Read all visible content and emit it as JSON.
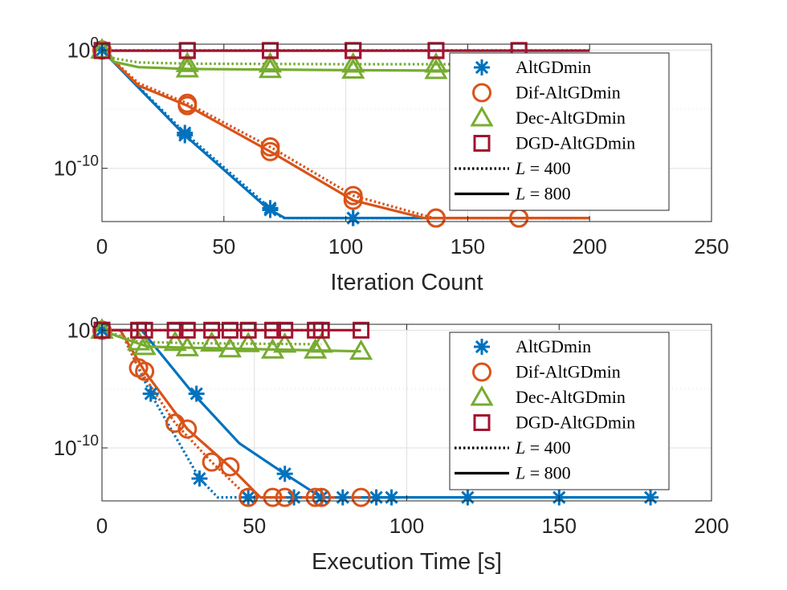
{
  "colors": {
    "AltGDmin": "#0072BD",
    "Dif-AltGDmin": "#D95319",
    "Dec-AltGDmin": "#77AC30",
    "DGD-AltGDmin": "#A2142F",
    "axis": "#262626",
    "legend_line": "#000000"
  },
  "chart_data": [
    {
      "id": "top",
      "type": "line",
      "xlabel": "Iteration Count",
      "ylabel": "",
      "xscale": "linear",
      "yscale": "log",
      "xlim": [
        0,
        250
      ],
      "ylim_exp": [
        -14.5,
        0.5
      ],
      "xticks": [
        0,
        50,
        100,
        150,
        200,
        250
      ],
      "yticks": [
        {
          "base": "10",
          "exp": "0",
          "value": 0
        },
        {
          "base": "10",
          "exp": "-10",
          "value": -10
        }
      ],
      "grid": true,
      "legend_position": "top-right",
      "legend": [
        "AltGDmin",
        "Dif-AltGDmin",
        "Dec-AltGDmin",
        "DGD-AltGDmin",
        "L = 400",
        "L = 800"
      ],
      "legend_styles": {
        "L = 400": "dotted",
        "L = 800": "solid"
      },
      "series": [
        {
          "name": "AltGDmin",
          "L": 800,
          "marker": "asterisk",
          "points": [
            [
              0,
              0
            ],
            [
              34,
              -7.2
            ],
            [
              68,
              -13.4
            ],
            [
              75,
              -14.2
            ],
            [
              200,
              -14.2
            ]
          ],
          "markers_x": [
            0,
            34,
            69,
            103
          ]
        },
        {
          "name": "AltGDmin",
          "L": 400,
          "marker": "asterisk",
          "points": [
            [
              0,
              0
            ],
            [
              34,
              -7
            ],
            [
              68,
              -13.2
            ],
            [
              74,
              -14.2
            ],
            [
              200,
              -14.2
            ]
          ],
          "markers_x": [
            0,
            34,
            69,
            103
          ]
        },
        {
          "name": "Dif-AltGDmin",
          "L": 800,
          "marker": "circle",
          "points": [
            [
              0,
              0
            ],
            [
              15,
              -3
            ],
            [
              35,
              -4.7
            ],
            [
              70,
              -8.7
            ],
            [
              103,
              -12.7
            ],
            [
              132,
              -14.2
            ],
            [
              200,
              -14.2
            ]
          ],
          "markers_x": [
            0,
            35,
            69,
            103,
            137,
            171
          ]
        },
        {
          "name": "Dif-AltGDmin",
          "L": 400,
          "marker": "circle",
          "points": [
            [
              0,
              0
            ],
            [
              15,
              -2.8
            ],
            [
              35,
              -4.5
            ],
            [
              70,
              -8.3
            ],
            [
              103,
              -12.3
            ],
            [
              136,
              -14.2
            ],
            [
              200,
              -14.2
            ]
          ],
          "markers_x": [
            0,
            35,
            69,
            103,
            137,
            171
          ]
        },
        {
          "name": "Dec-AltGDmin",
          "L": 800,
          "marker": "triangle",
          "points": [
            [
              0,
              0
            ],
            [
              5,
              -1
            ],
            [
              15,
              -1.45
            ],
            [
              35,
              -1.6
            ],
            [
              100,
              -1.7
            ],
            [
              200,
              -1.8
            ]
          ],
          "markers_x": [
            0,
            35,
            69,
            103,
            137
          ]
        },
        {
          "name": "Dec-AltGDmin",
          "L": 400,
          "marker": "triangle",
          "points": [
            [
              0,
              0
            ],
            [
              5,
              -0.7
            ],
            [
              15,
              -1.05
            ],
            [
              35,
              -1.15
            ],
            [
              100,
              -1.2
            ],
            [
              200,
              -1.2
            ]
          ],
          "markers_x": [
            0,
            35,
            69,
            103,
            137
          ]
        },
        {
          "name": "DGD-AltGDmin",
          "L": 800,
          "marker": "square",
          "points": [
            [
              0,
              -0.05
            ],
            [
              200,
              -0.05
            ]
          ],
          "markers_x": [
            0,
            35,
            69,
            103,
            137,
            171
          ]
        },
        {
          "name": "DGD-AltGDmin",
          "L": 400,
          "marker": "square",
          "points": [
            [
              0,
              -0.03
            ],
            [
              200,
              -0.03
            ]
          ],
          "markers_x": [
            0,
            35,
            69,
            103,
            137,
            171
          ]
        }
      ]
    },
    {
      "id": "bottom",
      "type": "line",
      "xlabel": "Execution Time [s]",
      "ylabel": "",
      "xscale": "linear",
      "yscale": "log",
      "xlim": [
        0,
        200
      ],
      "ylim_exp": [
        -14.5,
        0.5
      ],
      "xticks": [
        0,
        50,
        100,
        150,
        200
      ],
      "yticks": [
        {
          "base": "10",
          "exp": "0",
          "value": 0
        },
        {
          "base": "10",
          "exp": "-10",
          "value": -10
        }
      ],
      "grid": true,
      "legend_position": "top-right",
      "legend": [
        "AltGDmin",
        "Dif-AltGDmin",
        "Dec-AltGDmin",
        "DGD-AltGDmin",
        "L = 400",
        "L = 800"
      ],
      "legend_styles": {
        "L = 400": "dotted",
        "L = 800": "solid"
      },
      "series": [
        {
          "name": "AltGDmin",
          "L": 800,
          "marker": "asterisk",
          "points": [
            [
              0,
              0
            ],
            [
              6,
              0
            ],
            [
              13,
              0
            ],
            [
              30,
              -5.4
            ],
            [
              45,
              -9.6
            ],
            [
              60,
              -12.2
            ],
            [
              72,
              -14.2
            ],
            [
              180,
              -14.2
            ]
          ],
          "markers_x": [
            0,
            31,
            60,
            72,
            90,
            120,
            150,
            180
          ],
          "markers_y": [
            0,
            -5.4,
            -12.2,
            -14.2,
            -14.2,
            -14.2,
            -14.2,
            -14.2
          ]
        },
        {
          "name": "AltGDmin",
          "L": 400,
          "marker": "asterisk",
          "points": [
            [
              0,
              0
            ],
            [
              6,
              0
            ],
            [
              16,
              -5.4
            ],
            [
              32,
              -12.6
            ],
            [
              38,
              -14.2
            ],
            [
              95,
              -14.2
            ]
          ],
          "markers_x": [
            0,
            16,
            32,
            48,
            63,
            79,
            95
          ],
          "markers_y": [
            0,
            -5.4,
            -12.6,
            -14.2,
            -14.2,
            -14.2,
            -14.2
          ]
        },
        {
          "name": "Dif-AltGDmin",
          "L": 800,
          "marker": "circle",
          "points": [
            [
              0,
              0
            ],
            [
              6,
              0
            ],
            [
              14,
              -3.5
            ],
            [
              28,
              -8.4
            ],
            [
              42,
              -11.6
            ],
            [
              52,
              -14.2
            ],
            [
              85,
              -14.2
            ]
          ],
          "markers_x": [
            0,
            14,
            28,
            42,
            56,
            70,
            85
          ],
          "markers_y": [
            0,
            -3.5,
            -8.4,
            -11.6,
            -14.2,
            -14.2,
            -14.2
          ]
        },
        {
          "name": "Dif-AltGDmin",
          "L": 400,
          "marker": "circle",
          "points": [
            [
              0,
              0
            ],
            [
              6,
              0
            ],
            [
              12,
              -3.2
            ],
            [
              24,
              -7.9
            ],
            [
              36,
              -11.2
            ],
            [
              48,
              -14.2
            ],
            [
              72,
              -14.2
            ]
          ],
          "markers_x": [
            0,
            12,
            24,
            36,
            48,
            60,
            72
          ],
          "markers_y": [
            0,
            -3.2,
            -7.9,
            -11.2,
            -14.2,
            -14.2,
            -14.2
          ]
        },
        {
          "name": "Dec-AltGDmin",
          "L": 800,
          "marker": "triangle",
          "points": [
            [
              0,
              0
            ],
            [
              5,
              -0.5
            ],
            [
              15,
              -1.4
            ],
            [
              30,
              -1.5
            ],
            [
              85,
              -1.8
            ]
          ],
          "markers_x": [
            0,
            14,
            28,
            42,
            56,
            70,
            85
          ],
          "markers_y": [
            0,
            -1.4,
            -1.5,
            -1.6,
            -1.7,
            -1.7,
            -1.8
          ]
        },
        {
          "name": "Dec-AltGDmin",
          "L": 400,
          "marker": "triangle",
          "points": [
            [
              0,
              0
            ],
            [
              5,
              -0.4
            ],
            [
              12,
              -1
            ],
            [
              30,
              -1.1
            ],
            [
              72,
              -1.2
            ]
          ],
          "markers_x": [
            0,
            12,
            24,
            36,
            48,
            60,
            72
          ],
          "markers_y": [
            0,
            -1,
            -1.05,
            -1.1,
            -1.15,
            -1.2,
            -1.2
          ]
        },
        {
          "name": "DGD-AltGDmin",
          "L": 800,
          "marker": "square",
          "points": [
            [
              0,
              0
            ],
            [
              85,
              0
            ]
          ],
          "markers_x": [
            0,
            14,
            28,
            42,
            56,
            70,
            85
          ],
          "markers_y": [
            0,
            0,
            0,
            0,
            0,
            0,
            0
          ]
        },
        {
          "name": "DGD-AltGDmin",
          "L": 400,
          "marker": "square",
          "points": [
            [
              0,
              0
            ],
            [
              72,
              0
            ]
          ],
          "markers_x": [
            0,
            12,
            24,
            36,
            48,
            60,
            72
          ],
          "markers_y": [
            0,
            0,
            0,
            0,
            0,
            0,
            0
          ]
        }
      ]
    }
  ]
}
